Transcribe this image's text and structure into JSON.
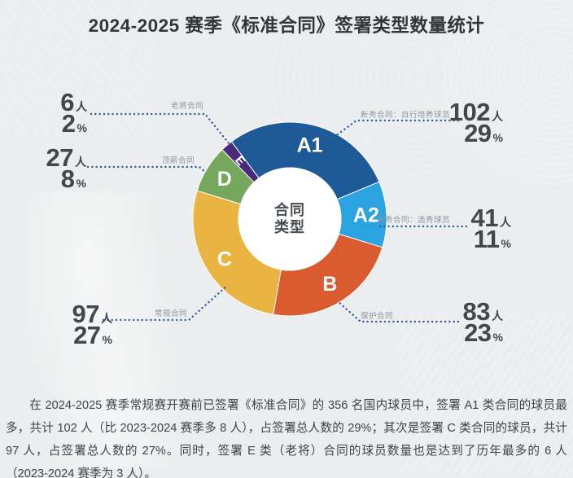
{
  "title": "2024-2025 赛季《标准合同》签署类型数量统计",
  "center_label": {
    "line1": "合同",
    "line2": "类型"
  },
  "units": {
    "people": "人",
    "percent": "%"
  },
  "callout_line_color": "#2d5f9b",
  "chart_data": {
    "type": "pie",
    "subtype": "donut",
    "title": "2024-2025 赛季《标准合同》签署类型数量统计",
    "center_text": "合同类型",
    "total_players": 356,
    "start_angle_deg": -37,
    "legend_position": "callouts",
    "segments": [
      {
        "letter": "A1",
        "category": "新秀合同：自行培养球员",
        "players": 102,
        "percent": 29,
        "color": "#1e5998"
      },
      {
        "letter": "A2",
        "category": "新秀合同：选秀球员",
        "players": 41,
        "percent": 11,
        "color": "#2aa3e0"
      },
      {
        "letter": "B",
        "category": "保护合同",
        "players": 83,
        "percent": 23,
        "color": "#d95b2f"
      },
      {
        "letter": "C",
        "category": "常规合同",
        "players": 97,
        "percent": 27,
        "color": "#e9b441"
      },
      {
        "letter": "D",
        "category": "顶薪合同",
        "players": 27,
        "percent": 8,
        "color": "#75a75d"
      },
      {
        "letter": "E",
        "category": "老将合同",
        "players": 6,
        "percent": 2,
        "color": "#4c2a7a"
      }
    ]
  },
  "summary": "在 2024-2025 赛季常规赛开赛前已签署《标准合同》的 356 名国内球员中，签署 A1 类合同的球员最多，共计 102 人（比 2023-2024 赛季多 8 人），占签署总人数的 29%；其次是签署 C 类合同的球员，共计 97 人，占签署总人数的 27%。同时，签署 E 类（老将）合同的球员数量也是达到了历年最多的 6 人（2023-2024 赛季为 3 人）。"
}
